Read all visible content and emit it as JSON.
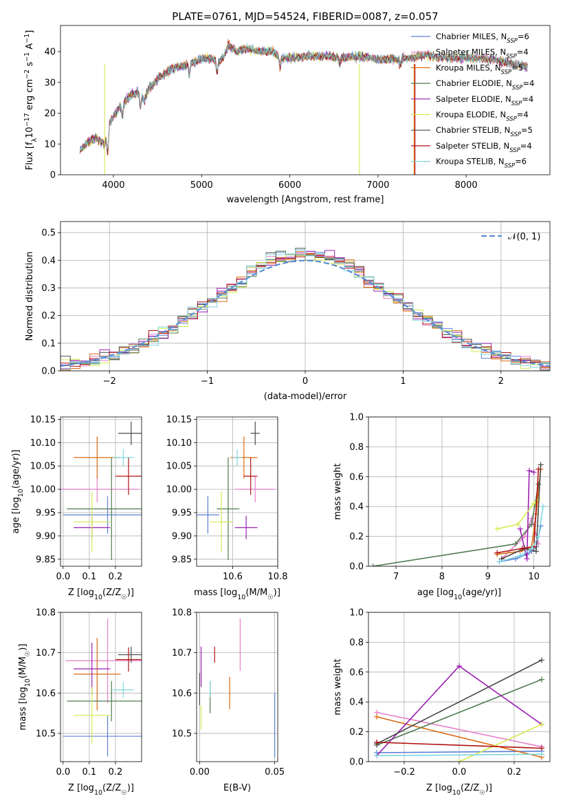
{
  "figure": {
    "title": "PLATE=0761, MJD=54524, FIBERID=0087, z=0.057",
    "legend_entries": [
      {
        "label": "Chabrier MILES, N",
        "sub": "SSP",
        "suffix": "=6",
        "color": "#5b7fd6"
      },
      {
        "label": "Salpeter MILES, N",
        "sub": "SSP",
        "suffix": "=4",
        "color": "#e67fc8"
      },
      {
        "label": "Kroupa MILES, N",
        "sub": "SSP",
        "suffix": "=5",
        "color": "#d96a12"
      },
      {
        "label": "Chabrier ELODIE, N",
        "sub": "SSP",
        "suffix": "=4",
        "color": "#4f7a4f"
      },
      {
        "label": "Salpeter ELODIE, N",
        "sub": "SSP",
        "suffix": "=4",
        "color": "#9a1fb0"
      },
      {
        "label": "Kroupa ELODIE, N",
        "sub": "SSP",
        "suffix": "=4",
        "color": "#d4ea4f"
      },
      {
        "label": "Chabrier STELIB, N",
        "sub": "SSP",
        "suffix": "=5",
        "color": "#4a4a4a"
      },
      {
        "label": "Salpeter STELIB, N",
        "sub": "SSP",
        "suffix": "=4",
        "color": "#b01010"
      },
      {
        "label": "Kroupa STELIB, N",
        "sub": "SSP",
        "suffix": "=6",
        "color": "#7dd6e0"
      }
    ]
  },
  "chart_data": [
    {
      "type": "line",
      "panel": "spectrum",
      "xlabel": "wavelength [Angstrom, rest frame]",
      "ylabel_parts": [
        "Flux [f",
        "λ",
        "10",
        "−17",
        " erg cm",
        "−2",
        " s",
        "−1",
        " A",
        "−1",
        "]"
      ],
      "xlim": [
        3400,
        8950
      ],
      "ylim": [
        0,
        48.5
      ],
      "xticks": [
        4000,
        5000,
        6000,
        7000,
        8000
      ],
      "yticks": [
        0,
        10,
        20,
        30,
        40
      ],
      "continuum": {
        "x": [
          3620,
          3700,
          3800,
          3900,
          3960,
          4000,
          4100,
          4200,
          4300,
          4350,
          4400,
          4500,
          4600,
          4700,
          4800,
          4900,
          5000,
          5100,
          5200,
          5250,
          5300,
          5400,
          5500,
          5600,
          5700,
          5800,
          5900,
          6000,
          6200,
          6400,
          6600,
          6800,
          7000,
          7200,
          7400,
          7550,
          7700,
          8000,
          8300,
          8700
        ],
        "y": [
          8,
          10.5,
          12,
          10,
          17,
          19,
          23,
          26,
          27,
          24,
          28,
          31,
          33,
          35,
          35.5,
          36.5,
          37.5,
          38,
          37,
          38,
          42,
          40,
          41,
          40.5,
          40,
          40,
          38,
          38,
          38.5,
          38.5,
          38,
          38.5,
          37.5,
          37.5,
          38,
          39,
          38,
          38,
          37.5,
          35
        ]
      },
      "dips": [
        [
          3935,
          7
        ],
        [
          4102,
          4
        ],
        [
          4305,
          5
        ],
        [
          4861,
          4
        ],
        [
          5175,
          4
        ],
        [
          5890,
          3
        ],
        [
          6563,
          2
        ],
        [
          7250,
          2
        ]
      ]
    },
    {
      "type": "histogram",
      "panel": "residuals",
      "xlabel": "(data-model)/error",
      "ylabel": "Normed distribution",
      "xlim": [
        -2.5,
        2.5
      ],
      "ylim": [
        0,
        0.54
      ],
      "xticks": [
        -2,
        -1,
        0,
        1,
        2
      ],
      "xtick_labels": [
        "−2",
        "−1",
        "0",
        "1",
        "2"
      ],
      "yticks": [
        0,
        0.1,
        0.2,
        0.3,
        0.4,
        0.5
      ],
      "ytick_labels": [
        "0.0",
        "0.1",
        "0.2",
        "0.3",
        "0.4",
        "0.5"
      ],
      "bin_width": 0.1,
      "bins_start": -2.5,
      "reference_label": "𝒩(0, 1)",
      "reference_color": "#5b8fd6"
    },
    {
      "type": "scatter",
      "panel": "age-vs-Z",
      "xlabel": "Z [log10(Z/Z☉)]",
      "ylabel": "age  [log10(age/yr)]",
      "xlim": [
        -0.01,
        0.3
      ],
      "ylim": [
        9.835,
        10.155
      ],
      "xticks": [
        0,
        0.1,
        0.2
      ],
      "xtick_labels": [
        "0.0",
        "0.1",
        "0.2"
      ],
      "yticks": [
        9.85,
        9.9,
        9.95,
        10.0,
        10.05,
        10.1,
        10.15
      ],
      "ytick_labels": [
        "9.85",
        "9.90",
        "9.95",
        "10.00",
        "10.05",
        "10.10",
        "10.15"
      ],
      "points": [
        {
          "x": 0.17,
          "xerr": 0.17,
          "y": 9.945,
          "yerr": 0.04,
          "color": "#5b7fd6"
        },
        {
          "x": 0.13,
          "xerr": 0.16,
          "y": 10.0,
          "yerr": 0.028,
          "color": "#e67fc8"
        },
        {
          "x": 0.13,
          "xerr": 0.09,
          "y": 10.068,
          "yerr": 0.045,
          "color": "#d96a12"
        },
        {
          "x": 0.185,
          "xerr": 0.17,
          "y": 9.958,
          "yerr": 0.11,
          "color": "#4f7a4f"
        },
        {
          "x": 0.11,
          "xerr": 0.07,
          "y": 9.918,
          "yerr": 0.025,
          "color": "#9a1fb0"
        },
        {
          "x": 0.11,
          "xerr": 0.07,
          "y": 9.93,
          "yerr": 0.065,
          "color": "#d4ea4f"
        },
        {
          "x": 0.26,
          "xerr": 0.05,
          "y": 10.12,
          "yerr": 0.025,
          "color": "#4a4a4a"
        },
        {
          "x": 0.25,
          "xerr": 0.05,
          "y": 10.028,
          "yerr": 0.04,
          "color": "#b01010"
        },
        {
          "x": 0.23,
          "xerr": 0.04,
          "y": 10.068,
          "yerr": 0.018,
          "color": "#7dd6e0"
        }
      ]
    },
    {
      "type": "scatter",
      "panel": "age-vs-mass",
      "xlabel": "mass [log10(M/M☉)]",
      "ylabel": "",
      "xlim": [
        10.44,
        10.8
      ],
      "ylim": [
        9.835,
        10.155
      ],
      "xticks": [
        10.6,
        10.8
      ],
      "xtick_labels": [
        "10.6",
        "10.8"
      ],
      "yticks": [
        9.85,
        9.9,
        9.95,
        10.0,
        10.05,
        10.1,
        10.15
      ],
      "ytick_labels": [
        "9.85",
        "9.90",
        "9.95",
        "10.00",
        "10.05",
        "10.10",
        "10.15"
      ],
      "points": [
        {
          "x": 10.49,
          "xerr": 0.05,
          "y": 9.945,
          "yerr": 0.04,
          "color": "#5b7fd6"
        },
        {
          "x": 10.7,
          "xerr": 0.09,
          "y": 10.0,
          "yerr": 0.028,
          "color": "#e67fc8"
        },
        {
          "x": 10.65,
          "xerr": 0.06,
          "y": 10.068,
          "yerr": 0.045,
          "color": "#d96a12"
        },
        {
          "x": 10.58,
          "xerr": 0.05,
          "y": 9.958,
          "yerr": 0.11,
          "color": "#4f7a4f"
        },
        {
          "x": 10.66,
          "xerr": 0.05,
          "y": 9.918,
          "yerr": 0.025,
          "color": "#9a1fb0"
        },
        {
          "x": 10.55,
          "xerr": 0.05,
          "y": 9.93,
          "yerr": 0.065,
          "color": "#d4ea4f"
        },
        {
          "x": 10.7,
          "xerr": 0.02,
          "y": 10.12,
          "yerr": 0.025,
          "color": "#4a4a4a"
        },
        {
          "x": 10.68,
          "xerr": 0.03,
          "y": 10.028,
          "yerr": 0.04,
          "color": "#b01010"
        },
        {
          "x": 10.62,
          "xerr": 0.02,
          "y": 10.068,
          "yerr": 0.018,
          "color": "#7dd6e0"
        }
      ]
    },
    {
      "type": "line",
      "panel": "weight-vs-age",
      "xlabel": "age  [log10(age/yr)]",
      "ylabel": "mass weight",
      "xlim": [
        6.4,
        10.35
      ],
      "ylim": [
        0,
        1
      ],
      "xticks": [
        7,
        8,
        9,
        10
      ],
      "xtick_labels": [
        "7",
        "8",
        "9",
        "10"
      ],
      "yticks": [
        0,
        0.2,
        0.4,
        0.6,
        0.8,
        1.0
      ],
      "ytick_labels": [
        "0.0",
        "0.2",
        "0.4",
        "0.6",
        "0.8",
        "1.0"
      ],
      "series": [
        {
          "color": "#5b7fd6",
          "x": [
            9.25,
            9.6,
            9.85,
            9.95,
            10.05,
            10.15
          ],
          "y": [
            0.03,
            0.05,
            0.08,
            0.1,
            0.13,
            0.27
          ]
        },
        {
          "color": "#e67fc8",
          "x": [
            9.3,
            9.8,
            9.95,
            10.1
          ],
          "y": [
            0.05,
            0.2,
            0.32,
            0.15
          ]
        },
        {
          "color": "#d96a12",
          "x": [
            9.2,
            9.7,
            9.95,
            10.05,
            10.15
          ],
          "y": [
            0.08,
            0.1,
            0.13,
            0.35,
            0.65
          ]
        },
        {
          "color": "#4f7a4f",
          "x": [
            6.5,
            9.6,
            9.95,
            10.1
          ],
          "y": [
            0.0,
            0.15,
            0.28,
            0.55
          ]
        },
        {
          "color": "#9a1fb0",
          "x": [
            9.7,
            9.85,
            9.9,
            10.0
          ],
          "y": [
            0.25,
            0.05,
            0.64,
            0.63
          ]
        },
        {
          "color": "#d4ea4f",
          "x": [
            9.2,
            9.65,
            10.0,
            10.1
          ],
          "y": [
            0.25,
            0.28,
            0.42,
            0.45
          ]
        },
        {
          "color": "#4a4a4a",
          "x": [
            9.3,
            9.8,
            10.05,
            10.15
          ],
          "y": [
            0.05,
            0.12,
            0.1,
            0.68
          ]
        },
        {
          "color": "#b01010",
          "x": [
            9.2,
            9.75,
            10.0,
            10.1
          ],
          "y": [
            0.09,
            0.12,
            0.13,
            0.65
          ]
        },
        {
          "color": "#7dd6e0",
          "x": [
            9.25,
            9.7,
            9.95,
            10.1,
            10.2
          ],
          "y": [
            0.03,
            0.07,
            0.12,
            0.2,
            0.4
          ]
        }
      ]
    },
    {
      "type": "scatter",
      "panel": "mass-vs-Z",
      "xlabel": "Z [log10(Z/Z☉)]",
      "ylabel": "mass [log10(M/M☉)]",
      "xlim": [
        -0.01,
        0.3
      ],
      "ylim": [
        10.43,
        10.8
      ],
      "xticks": [
        0,
        0.1,
        0.2
      ],
      "xtick_labels": [
        "0.0",
        "0.1",
        "0.2"
      ],
      "yticks": [
        10.5,
        10.6,
        10.7,
        10.8
      ],
      "ytick_labels": [
        "10.5",
        "10.6",
        "10.7",
        "10.8"
      ],
      "points": [
        {
          "x": 0.17,
          "xerr": 0.17,
          "y": 10.493,
          "yerr": 0.05,
          "color": "#5b7fd6"
        },
        {
          "x": 0.17,
          "xerr": 0.16,
          "y": 10.68,
          "yerr": 0.105,
          "color": "#e67fc8"
        },
        {
          "x": 0.13,
          "xerr": 0.09,
          "y": 10.647,
          "yerr": 0.09,
          "color": "#d96a12"
        },
        {
          "x": 0.185,
          "xerr": 0.17,
          "y": 10.58,
          "yerr": 0.05,
          "color": "#4f7a4f"
        },
        {
          "x": 0.11,
          "xerr": 0.07,
          "y": 10.66,
          "yerr": 0.065,
          "color": "#9a1fb0"
        },
        {
          "x": 0.11,
          "xerr": 0.07,
          "y": 10.545,
          "yerr": 0.07,
          "color": "#d4ea4f"
        },
        {
          "x": 0.26,
          "xerr": 0.05,
          "y": 10.695,
          "yerr": 0.02,
          "color": "#4a4a4a"
        },
        {
          "x": 0.25,
          "xerr": 0.05,
          "y": 10.683,
          "yerr": 0.03,
          "color": "#b01010"
        },
        {
          "x": 0.23,
          "xerr": 0.04,
          "y": 10.608,
          "yerr": 0.02,
          "color": "#7dd6e0"
        }
      ]
    },
    {
      "type": "scatter",
      "panel": "mass-vs-ebv",
      "xlabel": "E(B-V)",
      "ylabel": "",
      "xlim": [
        -0.002,
        0.052
      ],
      "ylim": [
        10.43,
        10.8
      ],
      "xticks": [
        0,
        0.05
      ],
      "xtick_labels": [
        "0.00",
        "0.05"
      ],
      "yticks": [
        10.5,
        10.6,
        10.7,
        10.8
      ],
      "ytick_labels": [
        "10.5",
        "10.6",
        "10.7",
        "10.8"
      ],
      "points": [
        {
          "x": 0.05,
          "xerr": 0,
          "y": 10.52,
          "yerr": 0.08,
          "color": "#5b7fd6"
        },
        {
          "x": 0.027,
          "xerr": 0,
          "y": 10.72,
          "yerr": 0.065,
          "color": "#e67fc8"
        },
        {
          "x": 0.02,
          "xerr": 0,
          "y": 10.6,
          "yerr": 0.04,
          "color": "#d96a12"
        },
        {
          "x": 0.007,
          "xerr": 0,
          "y": 10.59,
          "yerr": 0.04,
          "color": "#4f7a4f"
        },
        {
          "x": 0.001,
          "xerr": 0,
          "y": 10.665,
          "yerr": 0.05,
          "color": "#9a1fb0"
        },
        {
          "x": 0.001,
          "xerr": 0,
          "y": 10.54,
          "yerr": 0.03,
          "color": "#d4ea4f"
        },
        {
          "x": 0.0,
          "xerr": 0,
          "y": 10.61,
          "yerr": 0.04,
          "color": "#4a4a4a"
        },
        {
          "x": 0.01,
          "xerr": 0,
          "y": 10.695,
          "yerr": 0.02,
          "color": "#b01010"
        },
        {
          "x": 0.007,
          "xerr": 0,
          "y": 10.61,
          "yerr": 0.02,
          "color": "#7dd6e0"
        }
      ]
    },
    {
      "type": "line",
      "panel": "weight-vs-Z",
      "xlabel": "Z [log10(Z/Z☉)]",
      "ylabel": "mass weight",
      "xlim": [
        -0.33,
        0.33
      ],
      "ylim": [
        0,
        1
      ],
      "xticks": [
        -0.2,
        0,
        0.2
      ],
      "xtick_labels": [
        "−0.2",
        "0.0",
        "0.2"
      ],
      "yticks": [
        0,
        0.2,
        0.4,
        0.6,
        0.8,
        1.0
      ],
      "ytick_labels": [
        "0.0",
        "0.2",
        "0.4",
        "0.6",
        "0.8",
        "1.0"
      ],
      "series": [
        {
          "color": "#5b7fd6",
          "x": [
            -0.3,
            0.3
          ],
          "y": [
            0.06,
            0.07
          ]
        },
        {
          "color": "#e67fc8",
          "x": [
            -0.3,
            0.3
          ],
          "y": [
            0.33,
            0.1
          ]
        },
        {
          "color": "#d96a12",
          "x": [
            -0.3,
            0.3
          ],
          "y": [
            0.3,
            0.03
          ]
        },
        {
          "color": "#4f7a4f",
          "x": [
            -0.3,
            0.3
          ],
          "y": [
            0.11,
            0.55
          ]
        },
        {
          "color": "#9a1fb0",
          "x": [
            -0.3,
            0.0,
            0.3
          ],
          "y": [
            0.04,
            0.64,
            0.25
          ]
        },
        {
          "color": "#d4ea4f",
          "x": [
            0.0,
            0.3
          ],
          "y": [
            0.0,
            0.25
          ]
        },
        {
          "color": "#4a4a4a",
          "x": [
            -0.3,
            0.3
          ],
          "y": [
            0.12,
            0.68
          ]
        },
        {
          "color": "#b01010",
          "x": [
            -0.3,
            0.3
          ],
          "y": [
            0.13,
            0.09
          ]
        },
        {
          "color": "#7dd6e0",
          "x": [
            -0.3,
            0.3
          ],
          "y": [
            0.04,
            0.05
          ]
        }
      ]
    }
  ]
}
